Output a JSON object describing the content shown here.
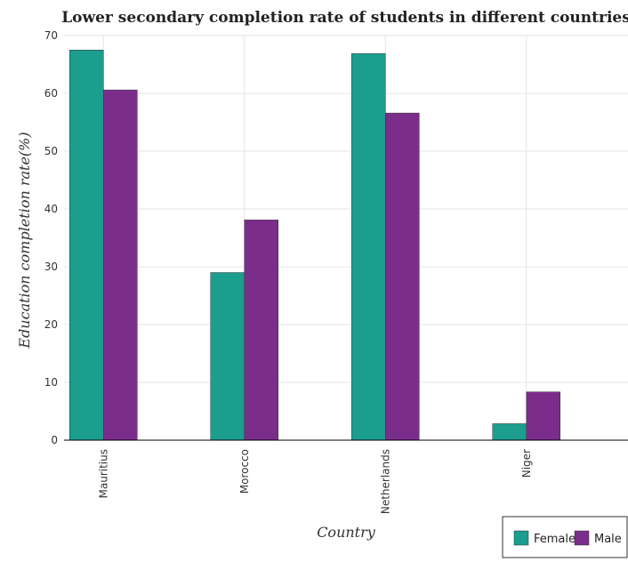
{
  "chart_data": {
    "type": "bar",
    "title": "Lower secondary completion rate of students in different countries",
    "xlabel": "Country",
    "ylabel": "Education completion rate(%)",
    "categories": [
      "Mauritius",
      "Morocco",
      "Netherlands",
      "Niger"
    ],
    "series": [
      {
        "name": "Female",
        "color": "#1b9e8e",
        "values": [
          67.5,
          29.0,
          66.9,
          2.85
        ]
      },
      {
        "name": "Male",
        "color": "#7b2d8b",
        "values": [
          60.6,
          38.1,
          56.6,
          8.35
        ]
      }
    ],
    "ylim": [
      0,
      70
    ],
    "yticks": [
      0,
      10,
      20,
      30,
      40,
      50,
      60,
      70
    ],
    "grid": true,
    "legend_position": "bottom-right"
  }
}
